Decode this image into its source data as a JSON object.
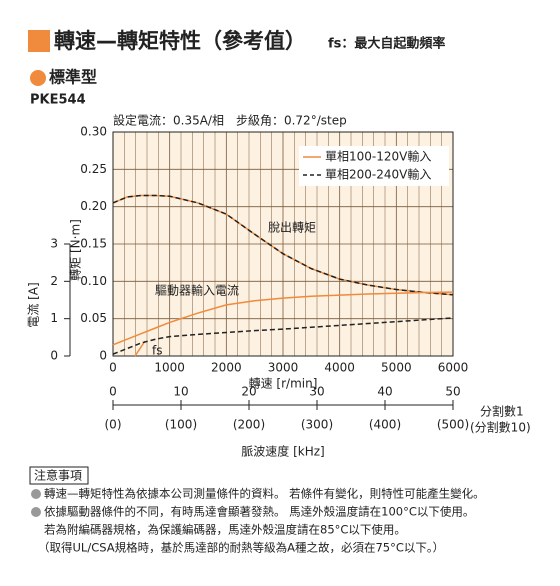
{
  "header": {
    "title": "轉速—轉矩特性（參考值）",
    "fs_note": "fs：最大自起動頻率",
    "section": "標準型",
    "model": "PKE544",
    "condition": "設定電流：0.35A/相　步級角：0.72°/step"
  },
  "chart_data": {
    "type": "line",
    "xlabel": "轉速 [r/min]",
    "ylabel": "轉矩 [N·m]",
    "y2label": "電流 [A]",
    "x": [
      0,
      250,
      500,
      750,
      1000,
      1500,
      2000,
      2500,
      3000,
      3500,
      4000,
      4500,
      5000,
      5500,
      6000
    ],
    "xlim": [
      0,
      6000
    ],
    "xticks": [
      0,
      1000,
      2000,
      3000,
      4000,
      5000,
      6000
    ],
    "ylim": [
      0,
      0.3
    ],
    "yticks": [
      0,
      0.05,
      {
        "value": 0.1,
        "label": "0.10"
      },
      0.15,
      {
        "value": 0.2,
        "label": "0.20"
      },
      0.25,
      {
        "value": 0.3,
        "label": "0.30"
      }
    ],
    "y2lim": [
      0,
      6
    ],
    "y2ticks": [
      0,
      1,
      2,
      3
    ],
    "grid": true,
    "legend": "upper right",
    "series": [
      {
        "name": "單相100-120V輸入",
        "color": "#f08a3c",
        "dash": false,
        "values": [
          0.205,
          0.213,
          0.215,
          0.215,
          0.214,
          0.205,
          0.19,
          0.163,
          0.137,
          0.117,
          0.103,
          0.095,
          0.089,
          0.085,
          0.082
        ]
      },
      {
        "name": "單相200-240V輸入",
        "color": "#222222",
        "dash": true,
        "values": [
          0.205,
          0.213,
          0.215,
          0.215,
          0.214,
          0.205,
          0.19,
          0.163,
          0.137,
          0.117,
          0.103,
          0.095,
          0.089,
          0.085,
          0.082
        ]
      },
      {
        "color": "#f08a3c",
        "dash": false,
        "axis": "y2",
        "values": [
          0.3,
          0.45,
          0.6,
          0.75,
          0.9,
          1.15,
          1.37,
          1.48,
          1.55,
          1.6,
          1.63,
          1.66,
          1.68,
          1.7,
          1.71
        ]
      },
      {
        "color": "#222222",
        "dash": true,
        "axis": "y2",
        "values": [
          0.05,
          0.2,
          0.35,
          0.45,
          0.52,
          0.58,
          0.63,
          0.68,
          0.72,
          0.77,
          0.82,
          0.87,
          0.92,
          0.97,
          1.02
        ]
      }
    ],
    "annotations": [
      "脫出轉矩",
      "驅動器輸入電流",
      "fs"
    ],
    "pulse_axis": {
      "label": "脈波速度 [kHz]",
      "xlim": [
        0,
        50
      ],
      "xticks": [
        0,
        10,
        20,
        30,
        40,
        50
      ],
      "label_div1": "分割數1",
      "xticks_div10": [
        {
          "value": 0,
          "label": "(0)"
        },
        {
          "value": 100,
          "label": "(100)"
        },
        {
          "value": 200,
          "label": "(200)"
        },
        {
          "value": 300,
          "label": "(300)"
        },
        {
          "value": 400,
          "label": "(400)"
        },
        {
          "value": 500,
          "label": "(500)"
        }
      ],
      "label_div10": "(分割數10)"
    }
  },
  "notes": {
    "title": "注意事項",
    "items": [
      "轉速—轉矩特性為依據本公司測量條件的資料。 若條件有變化，則特性可能產生變化。",
      "依據驅動器條件的不同，有時馬達會顯著發熱。 馬達外殼溫度請在100°C以下使用。",
      "若為附編碼器規格，為保護編碼器，馬達外殼溫度請在85°C以下使用。",
      "（取得UL/CSA規格時，基於馬達部的耐熱等級為A種之故，必須在75°C以下。）"
    ]
  }
}
